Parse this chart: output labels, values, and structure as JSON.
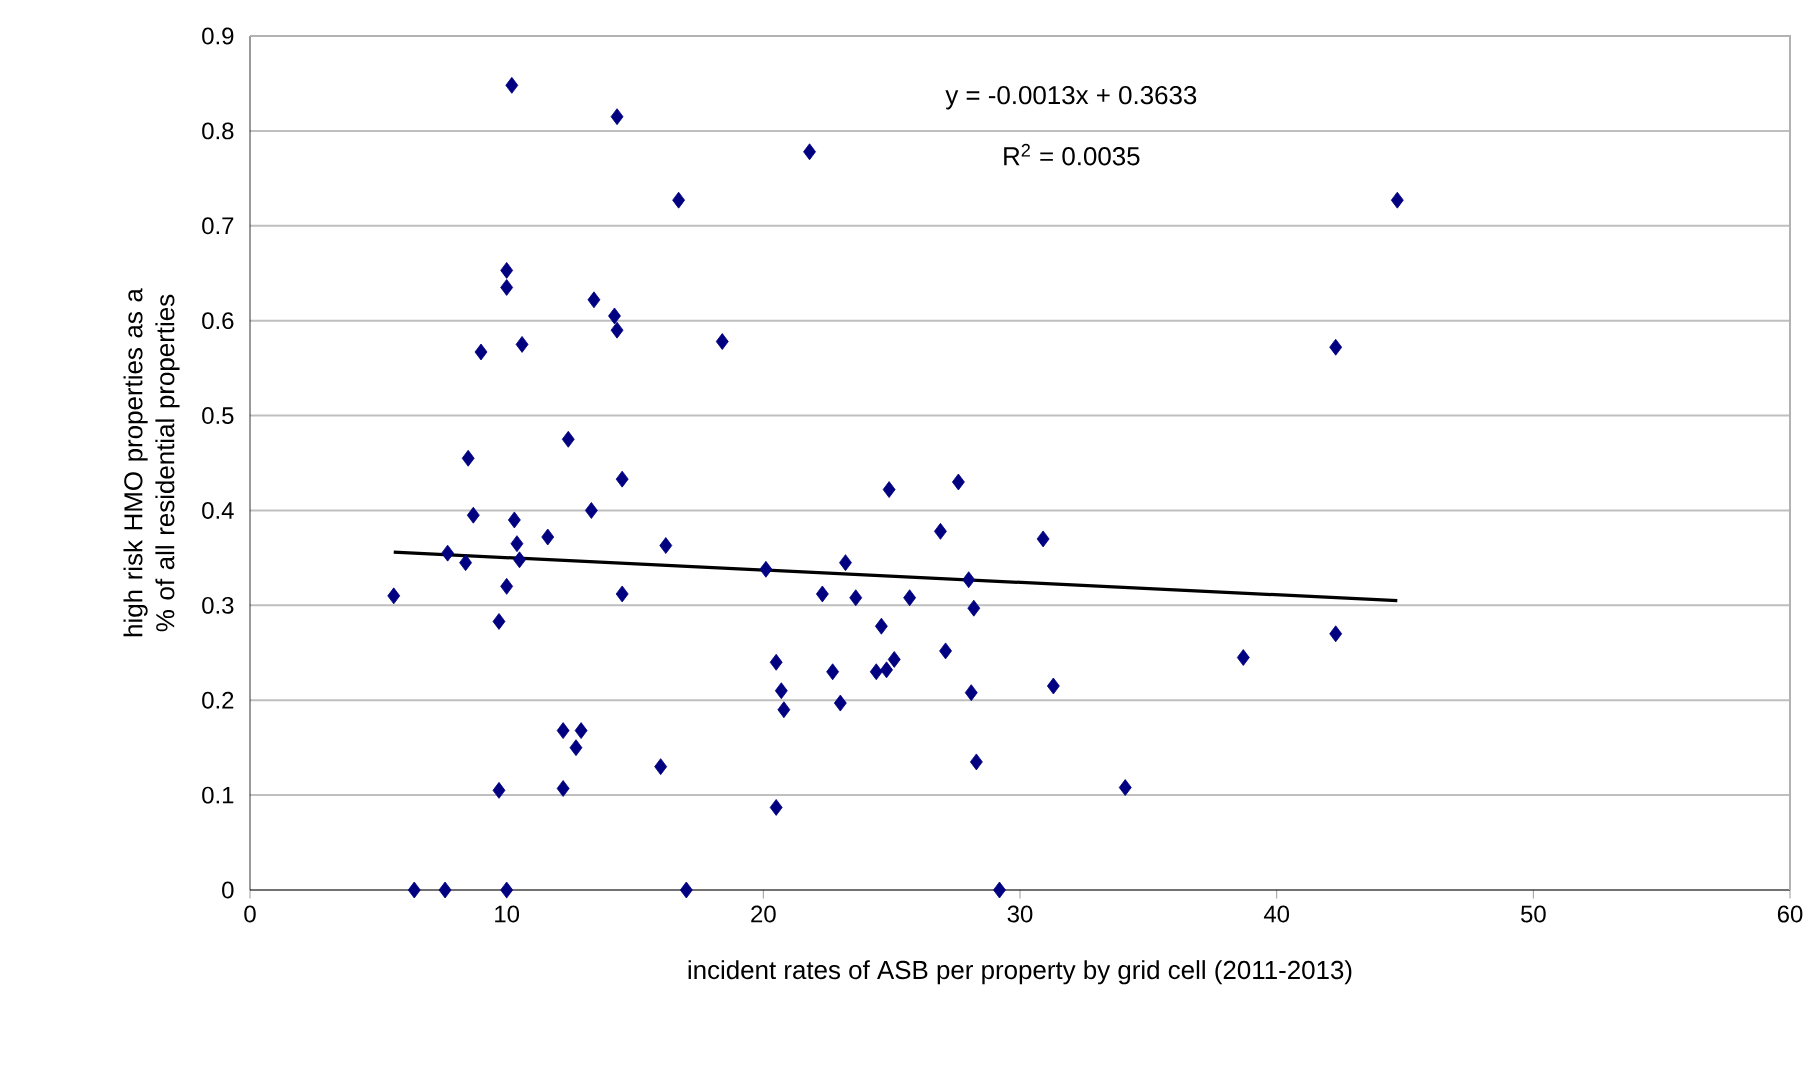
{
  "chart_data": {
    "type": "scatter",
    "xlabel": "incident rates of ASB per property by grid cell (2011-2013)",
    "ylabel": "high risk HMO properties as a % of all residential properties",
    "annotations": [
      "y = -0.0013x + 0.3633",
      "R$^{2}$ = 0.0035"
    ],
    "xlim": [
      0,
      60
    ],
    "ylim": [
      0,
      0.9
    ],
    "xticks": [
      0,
      10,
      20,
      30,
      40,
      50,
      60
    ],
    "yticks": [
      0,
      0.1,
      0.2,
      0.3,
      0.4,
      0.5,
      0.6,
      0.7,
      0.8,
      0.9
    ],
    "grid": "y",
    "marker": "diamond",
    "series": [
      {
        "color": "#000080",
        "x": [
          5.6,
          6.4,
          7.6,
          7.7,
          8.4,
          8.5,
          8.7,
          9.0,
          9.7,
          9.7,
          10.0,
          10.0,
          10.0,
          10.0,
          10.2,
          10.3,
          10.4,
          10.5,
          10.6,
          11.6,
          12.2,
          12.2,
          12.4,
          12.7,
          12.9,
          13.3,
          13.4,
          14.2,
          14.3,
          14.3,
          14.5,
          14.5,
          16.0,
          16.2,
          16.7,
          17.0,
          18.4,
          20.1,
          20.5,
          20.5,
          20.7,
          20.8,
          21.8,
          22.3,
          22.7,
          23.0,
          23.2,
          23.6,
          24.4,
          24.6,
          24.8,
          24.9,
          25.1,
          25.7,
          26.9,
          27.1,
          27.6,
          28.0,
          28.1,
          28.2,
          28.3,
          29.2,
          30.9,
          31.3,
          34.1,
          38.7,
          42.3,
          42.3,
          44.7
        ],
        "values": [
          0.31,
          0.0,
          0.0,
          0.355,
          0.345,
          0.455,
          0.395,
          0.567,
          0.105,
          0.283,
          0.32,
          0.0,
          0.653,
          0.635,
          0.848,
          0.39,
          0.365,
          0.348,
          0.575,
          0.372,
          0.168,
          0.107,
          0.475,
          0.15,
          0.168,
          0.4,
          0.622,
          0.605,
          0.59,
          0.815,
          0.433,
          0.312,
          0.13,
          0.363,
          0.727,
          0.0,
          0.578,
          0.338,
          0.24,
          0.087,
          0.21,
          0.19,
          0.778,
          0.312,
          0.23,
          0.197,
          0.345,
          0.308,
          0.23,
          0.278,
          0.232,
          0.422,
          0.243,
          0.308,
          0.378,
          0.252,
          0.43,
          0.327,
          0.208,
          0.297,
          0.135,
          0.0,
          0.37,
          0.215,
          0.108,
          0.245,
          0.572,
          0.27,
          0.727
        ]
      },
      {
        "type": "line",
        "color": "#000000",
        "marker": "none",
        "x": [
          5.6,
          44.7
        ],
        "values": [
          0.356,
          0.305
        ]
      }
    ]
  }
}
